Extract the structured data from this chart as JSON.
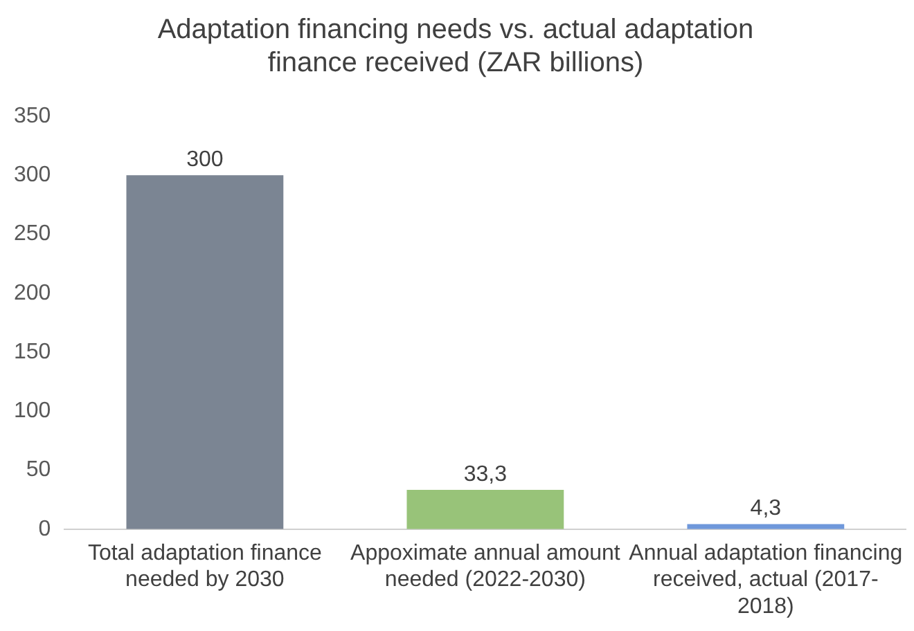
{
  "chart_data": {
    "type": "bar",
    "title": "Adaptation financing needs vs. actual adaptation finance received (ZAR billions)",
    "categories": [
      "Total adaptation finance needed by 2030",
      "Appoximate annual amount needed (2022-2030)",
      "Annual adaptation financing received, actual (2017-2018)"
    ],
    "values": [
      300,
      33.3,
      4.3
    ],
    "colors": [
      "#7b8593",
      "#98c379",
      "#6f98db"
    ],
    "value_labels": [
      "300",
      "33,3",
      "4,3"
    ],
    "ylim": [
      0,
      350
    ],
    "yticks": [
      0,
      50,
      100,
      150,
      200,
      250,
      300,
      350
    ],
    "grid": false,
    "legend": false
  }
}
